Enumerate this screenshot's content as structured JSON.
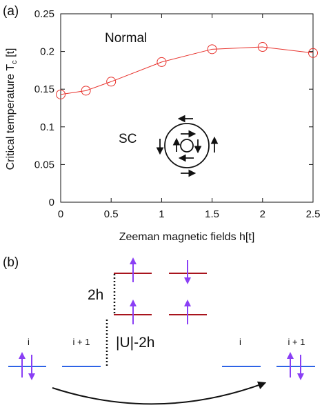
{
  "panel_a_label": "(a)",
  "panel_b_label": "(b)",
  "chart_data": {
    "type": "line",
    "title": "",
    "xlabel": "Zeeman magnetic fields h[t]",
    "ylabel_main": "Critical temperature T",
    "ylabel_sub": "c",
    "ylabel_tail": " [t]",
    "x": [
      0,
      0.25,
      0.5,
      1.0,
      1.5,
      2.0,
      2.5
    ],
    "y": [
      0.143,
      0.148,
      0.16,
      0.186,
      0.203,
      0.206,
      0.198
    ],
    "xlim": [
      0,
      2.5
    ],
    "ylim": [
      0,
      0.25
    ],
    "xticks": [
      0,
      0.5,
      1,
      1.5,
      2,
      2.5
    ],
    "xtick_labels": [
      "0",
      "0.5",
      "1",
      "1.5",
      "2",
      "2.5"
    ],
    "yticks": [
      0,
      0.05,
      0.1,
      0.15,
      0.2,
      0.25
    ],
    "ytick_labels": [
      "0",
      "0.05",
      "0.1",
      "0.15",
      "0.2",
      "0.25"
    ],
    "grid": false,
    "series_color": "#e8322c",
    "annotations": {
      "normal": "Normal",
      "sc": "SC"
    }
  },
  "diagram": {
    "site_i": "i",
    "site_i1": "i + 1",
    "gap_2h": "2h",
    "gap_U": "|U|-2h",
    "spin_color": "#8a3ff5",
    "level_blue": "#2d63e6",
    "level_red": "#a8141d"
  }
}
